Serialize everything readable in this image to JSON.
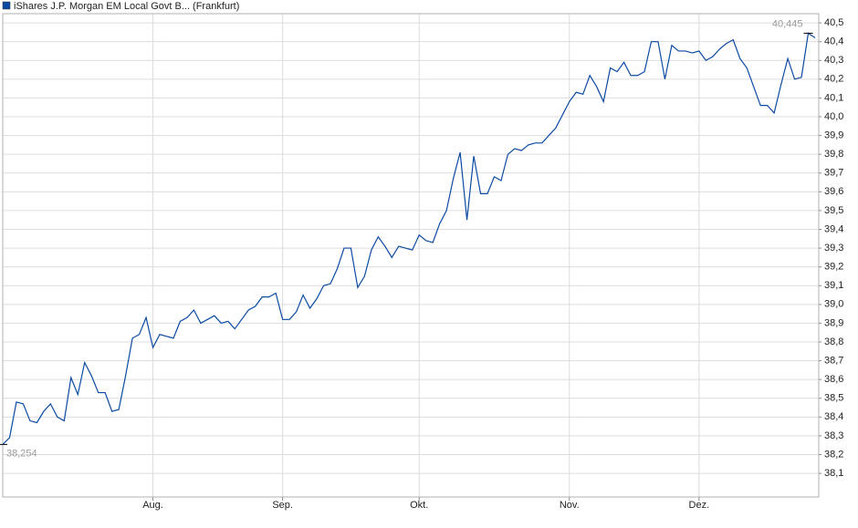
{
  "chart_data": {
    "type": "line",
    "series": [
      {
        "name": "iShares J.P. Morgan EM Local Govt B... (Frankfurt)",
        "color": "#0b4aa2",
        "values": [
          38.254,
          38.29,
          38.48,
          38.47,
          38.38,
          38.37,
          38.43,
          38.47,
          38.4,
          38.38,
          38.61,
          38.52,
          38.69,
          38.62,
          38.53,
          38.53,
          38.43,
          38.44,
          38.62,
          38.82,
          38.84,
          38.93,
          38.77,
          38.84,
          38.83,
          38.82,
          38.91,
          38.93,
          38.97,
          38.9,
          38.92,
          38.94,
          38.9,
          38.91,
          38.87,
          38.92,
          38.97,
          38.99,
          39.04,
          39.04,
          39.06,
          38.92,
          38.92,
          38.96,
          39.05,
          38.98,
          39.03,
          39.1,
          39.11,
          39.19,
          39.3,
          39.3,
          39.09,
          39.15,
          39.29,
          39.36,
          39.31,
          39.25,
          39.31,
          39.3,
          39.29,
          39.37,
          39.34,
          39.33,
          39.43,
          39.5,
          39.67,
          39.81,
          39.45,
          39.79,
          39.59,
          39.59,
          39.68,
          39.66,
          39.8,
          39.83,
          39.82,
          39.85,
          39.86,
          39.86,
          39.9,
          39.94,
          40.01,
          40.08,
          40.13,
          40.12,
          40.22,
          40.16,
          40.08,
          40.26,
          40.24,
          40.29,
          40.22,
          40.22,
          40.24,
          40.4,
          40.4,
          40.2,
          40.38,
          40.35,
          40.35,
          40.34,
          40.35,
          40.3,
          40.32,
          40.36,
          40.39,
          40.41,
          40.31,
          40.26,
          40.16,
          40.06,
          40.06,
          40.02,
          40.17,
          40.31,
          40.2,
          40.21,
          40.445,
          40.42
        ]
      }
    ],
    "categories": [
      null,
      null,
      null,
      null,
      null,
      null,
      null,
      null,
      null,
      null,
      null,
      null,
      null,
      null,
      null,
      null,
      null,
      null,
      null,
      null,
      null,
      null,
      "Aug.",
      null,
      null,
      null,
      null,
      null,
      null,
      null,
      null,
      null,
      null,
      null,
      null,
      null,
      null,
      null,
      null,
      null,
      null,
      "Sep.",
      null,
      null,
      null,
      null,
      null,
      null,
      null,
      null,
      null,
      null,
      null,
      null,
      null,
      null,
      null,
      null,
      null,
      null,
      null,
      "Okt.",
      null,
      null,
      null,
      null,
      null,
      null,
      null,
      null,
      null,
      null,
      null,
      null,
      null,
      null,
      null,
      null,
      null,
      null,
      null,
      null,
      null,
      "Nov.",
      null,
      null,
      null,
      null,
      null,
      null,
      null,
      null,
      null,
      null,
      null,
      null,
      null,
      null,
      null,
      null,
      null,
      null,
      "Dez.",
      null,
      null,
      null,
      null,
      null,
      null,
      null,
      null,
      null,
      null,
      null,
      null,
      null,
      null,
      null,
      null,
      null
    ],
    "ylim": [
      37.974,
      40.549
    ],
    "yticks": [
      {
        "value": 38.1,
        "label": "38,1"
      },
      {
        "value": 38.2,
        "label": "38,2"
      },
      {
        "value": 38.3,
        "label": "38,3"
      },
      {
        "value": 38.4,
        "label": "38,4"
      },
      {
        "value": 38.5,
        "label": "38,5"
      },
      {
        "value": 38.6,
        "label": "38,6"
      },
      {
        "value": 38.7,
        "label": "38,7"
      },
      {
        "value": 38.8,
        "label": "38,8"
      },
      {
        "value": 38.9,
        "label": "38,9"
      },
      {
        "value": 39.0,
        "label": "39,0"
      },
      {
        "value": 39.1,
        "label": "39,1"
      },
      {
        "value": 39.2,
        "label": "39,2"
      },
      {
        "value": 39.3,
        "label": "39,3"
      },
      {
        "value": 39.4,
        "label": "39,4"
      },
      {
        "value": 39.5,
        "label": "39,5"
      },
      {
        "value": 39.6,
        "label": "39,6"
      },
      {
        "value": 39.7,
        "label": "39,7"
      },
      {
        "value": 39.8,
        "label": "39,8"
      },
      {
        "value": 39.9,
        "label": "39,9"
      },
      {
        "value": 40.0,
        "label": "40,0"
      },
      {
        "value": 40.1,
        "label": "40,1"
      },
      {
        "value": 40.2,
        "label": "40,2"
      },
      {
        "value": 40.3,
        "label": "40,3"
      },
      {
        "value": 40.4,
        "label": "40,4"
      },
      {
        "value": 40.5,
        "label": "40,5"
      }
    ],
    "annotations": [
      {
        "index": 0,
        "value": 38.254,
        "label": "38,254"
      },
      {
        "index": 118,
        "value": 40.445,
        "label": "40,445"
      }
    ],
    "grid": true
  }
}
